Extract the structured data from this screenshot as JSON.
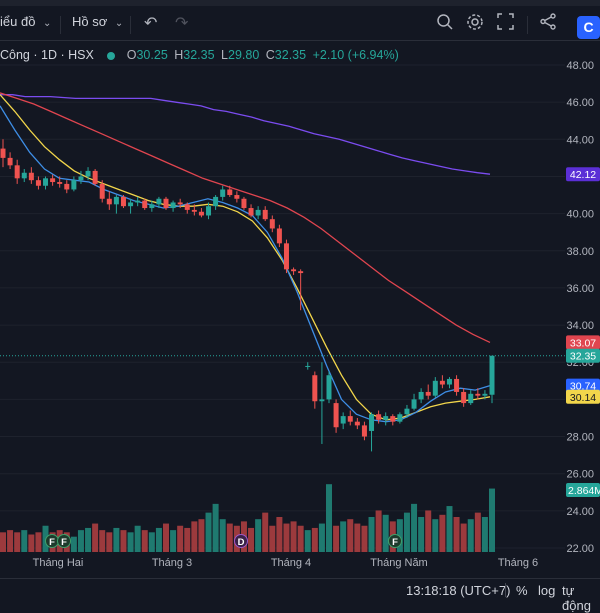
{
  "toolbar": {
    "chart_menu_label": "iểu đồ",
    "profile_menu_label": "Hồ sơ"
  },
  "legend": {
    "symbol_text": "Công · 1D · HSX",
    "open_key": "O",
    "open_val": "30.25",
    "high_key": "H",
    "high_val": "32.35",
    "low_key": "L",
    "low_val": "29.80",
    "close_key": "C",
    "close_val": "32.35",
    "change": "+2.10 (+6.94%)"
  },
  "colors": {
    "background": "#131722",
    "grid": "#1e222d",
    "up": "#26a69a",
    "down": "#ef5350",
    "ma_purple": "#7b4cf0",
    "ma_red": "#e0454f",
    "ma_yellow": "#f2d64b",
    "ma_blue": "#3e8ee6"
  },
  "chart_data": {
    "type": "candlestick",
    "price_axis": [
      "48.00",
      "46.00",
      "44.00",
      "42.00",
      "40.00",
      "38.00",
      "36.00",
      "34.00",
      "32.00",
      "30.00",
      "28.00",
      "26.00",
      "24.00",
      "22.00"
    ],
    "ylim": [
      22,
      48
    ],
    "time_axis": [
      "Tháng Hai",
      "Tháng 3",
      "Tháng 4",
      "Tháng Năm",
      "Tháng 6"
    ],
    "price_labels": [
      {
        "text": "42.12",
        "value": 42.12,
        "color": "#5b2fd6"
      },
      {
        "text": "33.07",
        "value": 33.07,
        "color": "#e0454f"
      },
      {
        "text": "32.35",
        "value": 32.35,
        "color": "#26a69a"
      },
      {
        "text": "30.74",
        "value": 30.74,
        "color": "#2962ff"
      },
      {
        "text": "30.14",
        "value": 30.14,
        "color": "#f2d64b"
      }
    ],
    "volume_label": "2.864M",
    "event_markers": [
      {
        "text": "F",
        "month_index": 0,
        "offset": 0
      },
      {
        "text": "F",
        "month_index": 0,
        "offset": 1
      },
      {
        "text": "D",
        "month_index": 2,
        "offset": 0
      },
      {
        "text": "F",
        "month_index": 3,
        "offset": 0
      }
    ],
    "candles": [
      [
        43.5,
        44.0,
        42.5,
        43.0
      ],
      [
        43.0,
        43.3,
        42.4,
        42.6
      ],
      [
        42.6,
        42.9,
        41.6,
        41.9
      ],
      [
        41.9,
        42.4,
        41.7,
        42.2
      ],
      [
        42.2,
        42.5,
        41.6,
        41.8
      ],
      [
        41.8,
        42.0,
        41.3,
        41.5
      ],
      [
        41.5,
        42.0,
        41.3,
        41.9
      ],
      [
        41.9,
        42.1,
        41.5,
        41.7
      ],
      [
        41.7,
        42.0,
        41.4,
        41.6
      ],
      [
        41.6,
        41.8,
        41.1,
        41.3
      ],
      [
        41.3,
        42.0,
        41.2,
        41.8
      ],
      [
        41.8,
        42.3,
        41.6,
        42.0
      ],
      [
        42.0,
        42.5,
        41.8,
        42.3
      ],
      [
        42.3,
        42.4,
        41.5,
        41.6
      ],
      [
        41.6,
        41.8,
        40.6,
        40.8
      ],
      [
        40.8,
        41.2,
        40.2,
        40.5
      ],
      [
        40.5,
        41.0,
        40.0,
        40.9
      ],
      [
        40.9,
        41.0,
        40.3,
        40.4
      ],
      [
        40.4,
        40.8,
        40.0,
        40.6
      ],
      [
        40.6,
        40.9,
        40.4,
        40.7
      ],
      [
        40.7,
        40.8,
        40.2,
        40.3
      ],
      [
        40.3,
        40.7,
        40.1,
        40.5
      ],
      [
        40.5,
        40.9,
        40.3,
        40.8
      ],
      [
        40.8,
        40.9,
        40.2,
        40.3
      ],
      [
        40.3,
        40.7,
        40.1,
        40.6
      ],
      [
        40.6,
        40.8,
        40.3,
        40.5
      ],
      [
        40.5,
        40.6,
        40.0,
        40.2
      ],
      [
        40.2,
        40.5,
        39.9,
        40.1
      ],
      [
        40.1,
        40.3,
        39.8,
        39.9
      ],
      [
        39.9,
        40.6,
        39.7,
        40.4
      ],
      [
        40.4,
        41.0,
        40.2,
        40.9
      ],
      [
        40.9,
        41.5,
        40.7,
        41.3
      ],
      [
        41.3,
        41.5,
        40.9,
        41.0
      ],
      [
        41.0,
        41.2,
        40.6,
        40.8
      ],
      [
        40.8,
        40.9,
        40.2,
        40.3
      ],
      [
        40.3,
        40.5,
        39.8,
        39.9
      ],
      [
        39.9,
        40.4,
        39.7,
        40.2
      ],
      [
        40.2,
        40.4,
        39.6,
        39.7
      ],
      [
        39.7,
        39.9,
        39.0,
        39.2
      ],
      [
        39.2,
        39.4,
        38.2,
        38.4
      ],
      [
        38.4,
        38.6,
        36.8,
        37.0
      ],
      [
        37.0,
        37.1,
        36.7,
        36.9
      ],
      [
        36.9,
        37.0,
        34.8,
        36.8
      ],
      [
        31.8,
        32.0,
        31.6,
        31.8
      ],
      [
        31.3,
        31.5,
        29.5,
        29.9
      ],
      [
        29.9,
        32.0,
        27.6,
        30.0
      ],
      [
        30.0,
        31.5,
        29.8,
        31.3
      ],
      [
        29.8,
        30.0,
        28.2,
        28.5
      ],
      [
        28.7,
        29.3,
        28.4,
        29.1
      ],
      [
        29.1,
        29.4,
        28.6,
        28.8
      ],
      [
        28.8,
        29.0,
        28.4,
        28.6
      ],
      [
        28.6,
        28.8,
        27.8,
        28.0
      ],
      [
        28.3,
        29.3,
        27.2,
        29.2
      ],
      [
        29.2,
        29.4,
        28.7,
        28.9
      ],
      [
        28.9,
        29.3,
        28.6,
        29.1
      ],
      [
        29.1,
        29.2,
        28.6,
        28.8
      ],
      [
        28.8,
        29.3,
        28.7,
        29.2
      ],
      [
        29.2,
        29.7,
        29.0,
        29.5
      ],
      [
        29.5,
        30.3,
        29.4,
        30.0
      ],
      [
        30.0,
        30.6,
        29.8,
        30.4
      ],
      [
        30.4,
        30.8,
        30.0,
        30.2
      ],
      [
        30.2,
        31.2,
        30.1,
        31.0
      ],
      [
        31.0,
        31.3,
        30.6,
        30.8
      ],
      [
        30.8,
        31.2,
        30.6,
        31.1
      ],
      [
        31.1,
        31.3,
        30.2,
        30.4
      ],
      [
        30.4,
        30.6,
        29.6,
        29.8
      ],
      [
        29.8,
        30.5,
        29.7,
        30.3
      ],
      [
        30.3,
        30.6,
        30.0,
        30.2
      ],
      [
        30.2,
        30.5,
        30.0,
        30.3
      ],
      [
        30.25,
        32.35,
        29.8,
        32.35
      ]
    ],
    "volumes": [
      0.9,
      1.0,
      0.9,
      1.0,
      0.8,
      0.9,
      1.2,
      0.9,
      1.0,
      0.9,
      0.7,
      1.0,
      1.1,
      1.3,
      1.0,
      0.9,
      1.1,
      1.0,
      0.9,
      1.2,
      1.0,
      0.9,
      1.1,
      1.3,
      1.0,
      1.2,
      1.1,
      1.4,
      1.5,
      1.8,
      2.2,
      1.5,
      1.3,
      1.2,
      1.4,
      1.1,
      1.5,
      1.8,
      1.2,
      1.6,
      1.3,
      1.4,
      1.2,
      1.0,
      1.1,
      1.3,
      3.1,
      1.2,
      1.4,
      1.5,
      1.3,
      1.2,
      1.6,
      1.9,
      1.7,
      1.4,
      1.5,
      1.8,
      2.2,
      1.6,
      1.9,
      1.5,
      1.7,
      2.1,
      1.6,
      1.3,
      1.5,
      1.8,
      1.6,
      2.9
    ],
    "ma_purple": [
      46.4,
      46.4,
      46.3,
      46.3,
      46.3,
      46.25,
      46.2,
      46.2,
      46.2,
      46.2,
      46.2,
      46.2,
      46.2,
      46.1,
      46.0,
      45.9,
      45.8,
      45.6,
      45.5,
      45.35,
      45.2,
      45.0,
      44.85,
      44.7,
      44.5,
      44.3,
      44.15,
      44.0,
      43.8,
      43.6,
      43.4,
      43.2,
      43.0,
      42.85,
      42.7,
      42.55,
      42.4,
      42.3,
      42.2,
      42.12
    ],
    "ma_red": [
      46.5,
      46.2,
      45.9,
      45.5,
      45.1,
      44.7,
      44.3,
      43.9,
      43.5,
      43.1,
      42.7,
      42.3,
      41.9,
      41.6,
      41.3,
      41.0,
      40.7,
      40.3,
      39.8,
      39.2,
      38.5,
      37.8,
      37.1,
      36.4,
      35.8,
      35.2,
      34.6,
      34.0,
      33.5,
      33.07
    ],
    "ma_yellow": [
      46.4,
      45.5,
      44.5,
      43.6,
      42.9,
      42.3,
      41.9,
      41.6,
      41.3,
      41.0,
      40.7,
      40.5,
      40.4,
      40.4,
      40.5,
      40.4,
      40.1,
      39.6,
      38.7,
      37.5,
      36.0,
      34.4,
      32.8,
      31.3,
      30.0,
      29.2,
      28.9,
      29.0,
      29.3,
      29.6,
      29.8,
      29.9,
      30.0,
      30.14
    ],
    "ma_blue": [
      45.8,
      44.5,
      43.3,
      42.4,
      41.9,
      41.8,
      41.7,
      41.3,
      41.0,
      40.7,
      40.5,
      40.3,
      40.4,
      40.6,
      40.8,
      40.6,
      40.3,
      39.9,
      39.0,
      37.6,
      35.8,
      33.8,
      31.8,
      30.0,
      29.2,
      28.9,
      28.8,
      28.9,
      29.3,
      29.9,
      30.4,
      30.6,
      30.5,
      30.74
    ]
  },
  "statusbar": {
    "time": "13:18:18 (UTC+7)",
    "percent_label": "%",
    "log_label": "log",
    "auto_label": "tự động"
  }
}
